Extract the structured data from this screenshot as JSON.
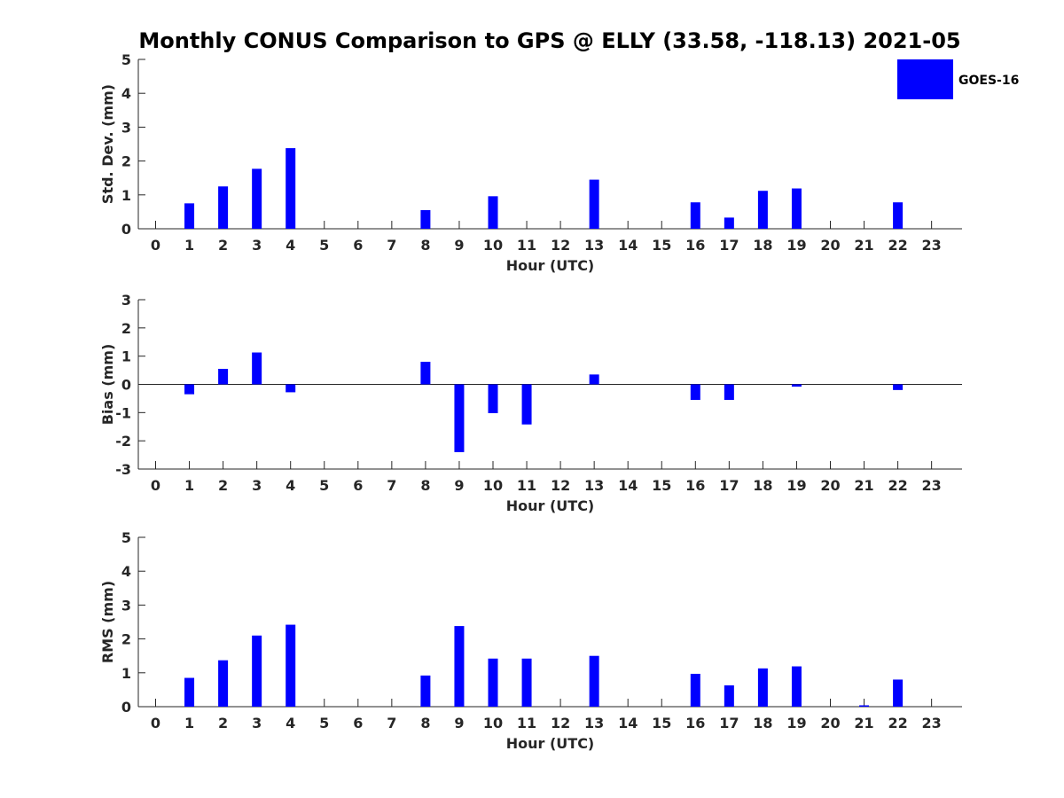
{
  "chart_data": {
    "title": "Monthly CONUS Comparison to GPS @ ELLY (33.58, -118.13) 2021-05",
    "legend": {
      "label": "GOES-16",
      "color": "#0000ff",
      "placement": "top-right"
    },
    "series_color": "#0000ff",
    "panels": [
      {
        "id": "std",
        "type": "bar",
        "ylabel": "Std. Dev. (mm)",
        "xlabel": "Hour (UTC)",
        "ylim": [
          0,
          5
        ],
        "yticks": [
          0,
          1,
          2,
          3,
          4,
          5
        ],
        "zero_line": false,
        "categories": [
          "0",
          "1",
          "2",
          "3",
          "4",
          "5",
          "6",
          "7",
          "8",
          "9",
          "10",
          "11",
          "12",
          "13",
          "14",
          "15",
          "16",
          "17",
          "18",
          "19",
          "20",
          "21",
          "22",
          "23"
        ],
        "values": [
          null,
          0.75,
          1.25,
          1.77,
          2.38,
          null,
          null,
          null,
          0.55,
          null,
          0.96,
          null,
          null,
          1.45,
          null,
          null,
          0.78,
          0.33,
          1.12,
          1.19,
          null,
          null,
          0.78,
          null
        ]
      },
      {
        "id": "bias",
        "type": "bar",
        "ylabel": "Bias (mm)",
        "xlabel": "Hour (UTC)",
        "ylim": [
          -3,
          3
        ],
        "yticks": [
          -3,
          -2,
          -1,
          0,
          1,
          2,
          3
        ],
        "zero_line": true,
        "categories": [
          "0",
          "1",
          "2",
          "3",
          "4",
          "5",
          "6",
          "7",
          "8",
          "9",
          "10",
          "11",
          "12",
          "13",
          "14",
          "15",
          "16",
          "17",
          "18",
          "19",
          "20",
          "21",
          "22",
          "23"
        ],
        "values": [
          null,
          -0.35,
          0.55,
          1.13,
          -0.28,
          null,
          null,
          null,
          0.8,
          -2.4,
          -1.02,
          -1.42,
          null,
          0.35,
          null,
          null,
          -0.55,
          -0.55,
          null,
          -0.08,
          null,
          null,
          -0.2,
          null
        ]
      },
      {
        "id": "rms",
        "type": "bar",
        "ylabel": "RMS (mm)",
        "xlabel": "Hour (UTC)",
        "ylim": [
          0,
          5
        ],
        "yticks": [
          0,
          1,
          2,
          3,
          4,
          5
        ],
        "zero_line": false,
        "categories": [
          "0",
          "1",
          "2",
          "3",
          "4",
          "5",
          "6",
          "7",
          "8",
          "9",
          "10",
          "11",
          "12",
          "13",
          "14",
          "15",
          "16",
          "17",
          "18",
          "19",
          "20",
          "21",
          "22",
          "23"
        ],
        "values": [
          null,
          0.85,
          1.37,
          2.1,
          2.42,
          null,
          null,
          null,
          0.92,
          2.38,
          1.42,
          1.42,
          null,
          1.5,
          null,
          null,
          0.97,
          0.63,
          1.13,
          1.19,
          null,
          0.04,
          0.8,
          null
        ]
      }
    ]
  }
}
